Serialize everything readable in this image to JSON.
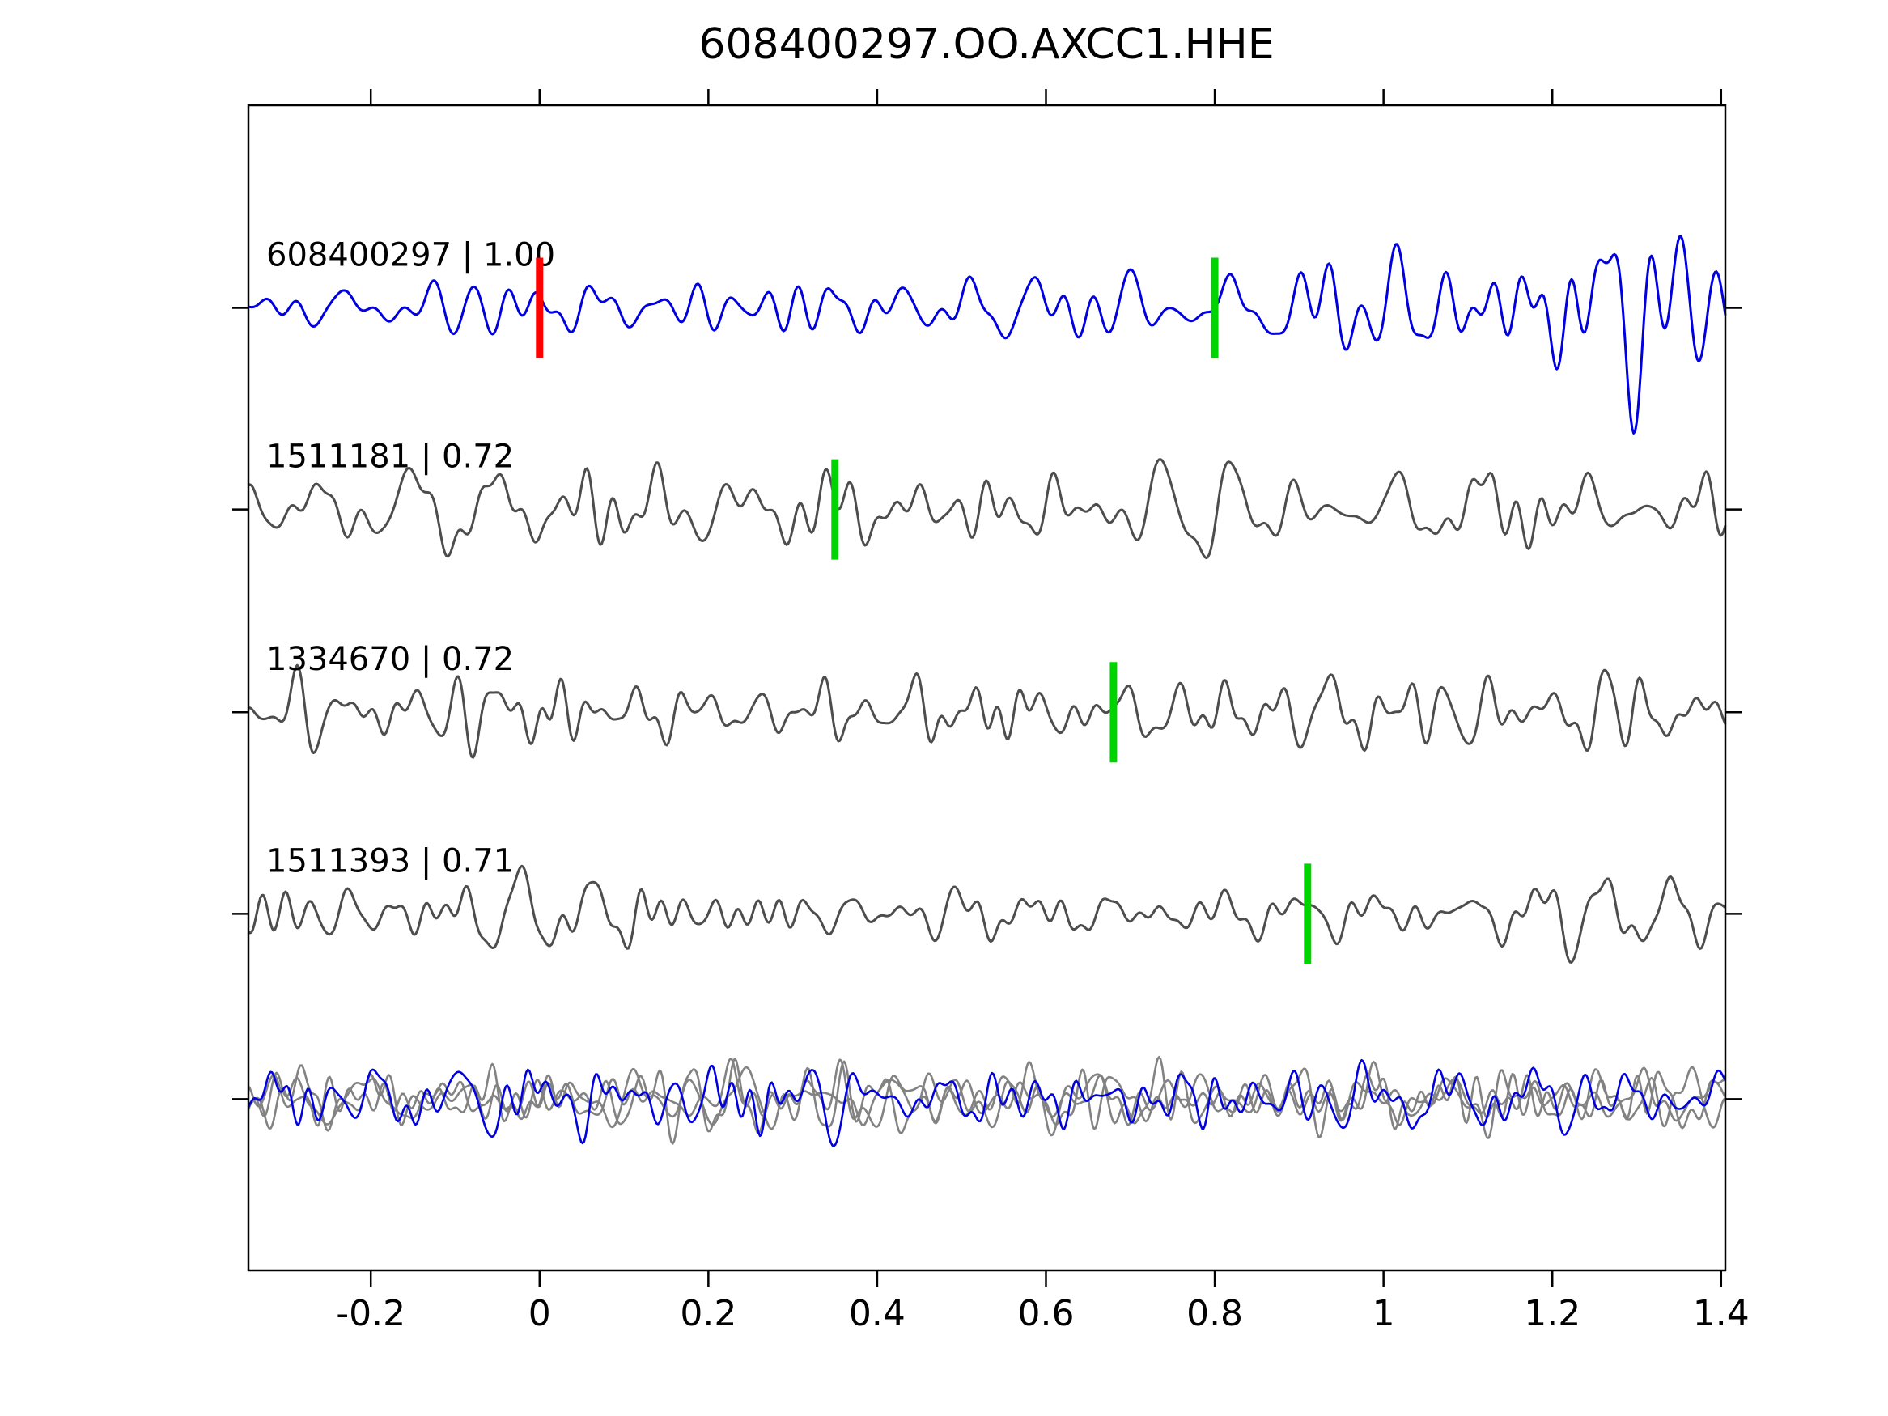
{
  "chart_data": {
    "type": "line",
    "title": "608400297.OO.AXCC1.HHE",
    "xlabel": "",
    "ylabel": "",
    "xlim": [
      -0.345,
      1.405
    ],
    "xticks": [
      -0.2,
      0,
      0.2,
      0.4,
      0.6,
      0.8,
      1,
      1.2,
      1.4
    ],
    "xtick_labels": [
      "-0.2",
      "0",
      "0.2",
      "0.4",
      "0.6",
      "0.8",
      "1",
      "1.2",
      "1.4"
    ],
    "grid": false,
    "legend": "none",
    "description": "Template-matching seismic waveform comparison: top blue template trace with correlation 1.00, three gray detection traces with correlation values, bottom panel overlays all aligned traces. Red tick = template origin pick, green ticks = detection picks.",
    "colors": {
      "template_trace": "#0000e0",
      "match_trace": "#4d4d4d",
      "overlay_gray": "#828282",
      "pick_red": "#ff0000",
      "pick_green": "#00d400",
      "frame": "#000000"
    },
    "traces": [
      {
        "event_id": "608400297",
        "correlation": "1.00",
        "label": "608400297 | 1.00",
        "color_key": "template_trace",
        "markers": [
          {
            "x": 0.0,
            "color_key": "pick_red"
          },
          {
            "x": 0.8,
            "color_key": "pick_green"
          }
        ],
        "seed": 11,
        "amp": 72,
        "freq": [
          7,
          36
        ],
        "envelope": "template"
      },
      {
        "event_id": "1511181",
        "correlation": "0.72",
        "label": "1511181 | 0.72",
        "color_key": "match_trace",
        "markers": [
          {
            "x": 0.35,
            "color_key": "pick_green"
          }
        ],
        "seed": 23,
        "amp": 62,
        "freq": [
          7,
          42
        ],
        "envelope": "flat"
      },
      {
        "event_id": "1334670",
        "correlation": "0.72",
        "label": "1334670 | 0.72",
        "color_key": "match_trace",
        "markers": [
          {
            "x": 0.68,
            "color_key": "pick_green"
          }
        ],
        "seed": 37,
        "amp": 58,
        "freq": [
          8,
          45
        ],
        "envelope": "flat"
      },
      {
        "event_id": "1511393",
        "correlation": "0.71",
        "label": "1511393 | 0.71",
        "color_key": "match_trace",
        "markers": [
          {
            "x": 0.91,
            "color_key": "pick_green"
          }
        ],
        "seed": 51,
        "amp": 60,
        "freq": [
          8,
          45
        ],
        "envelope": "flat"
      }
    ],
    "overlay_traces": [
      {
        "color_key": "overlay_gray",
        "seed": 61,
        "amp": 55,
        "freq": [
          9,
          50
        ]
      },
      {
        "color_key": "overlay_gray",
        "seed": 72,
        "amp": 50,
        "freq": [
          9,
          50
        ]
      },
      {
        "color_key": "overlay_gray",
        "seed": 83,
        "amp": 52,
        "freq": [
          9,
          50
        ]
      },
      {
        "color_key": "template_trace",
        "seed": 94,
        "amp": 58,
        "freq": [
          9,
          50
        ]
      }
    ]
  }
}
